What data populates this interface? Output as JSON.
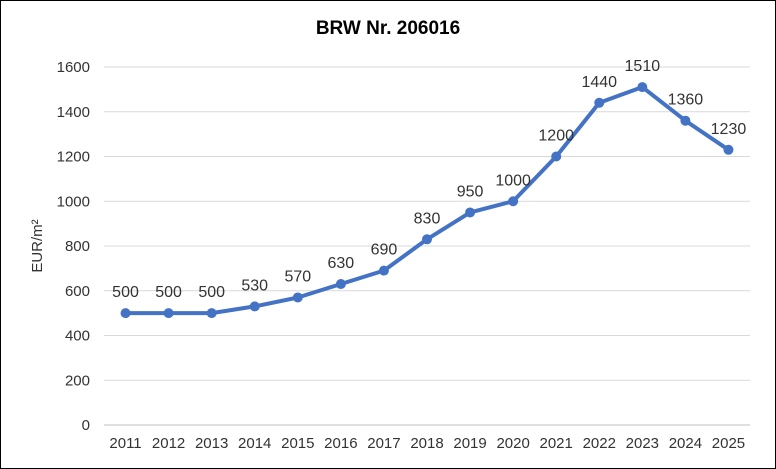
{
  "chart_data": {
    "type": "line",
    "title": "BRW Nr. 206016",
    "xlabel": "",
    "ylabel": "EUR/m²",
    "categories": [
      "2011",
      "2012",
      "2013",
      "2014",
      "2015",
      "2016",
      "2017",
      "2018",
      "2019",
      "2020",
      "2021",
      "2022",
      "2023",
      "2024",
      "2025"
    ],
    "series": [
      {
        "values": [
          500,
          500,
          500,
          530,
          570,
          630,
          690,
          830,
          950,
          1000,
          1200,
          1440,
          1510,
          1360,
          1230
        ]
      }
    ],
    "yticks": [
      "0",
      "200",
      "400",
      "600",
      "800",
      "1000",
      "1200",
      "1400",
      "1600"
    ],
    "ylim": [
      0,
      1600
    ],
    "grid": true,
    "legend": "none",
    "line_color": "#4472c4",
    "grid_color": "#d9d9d9"
  }
}
